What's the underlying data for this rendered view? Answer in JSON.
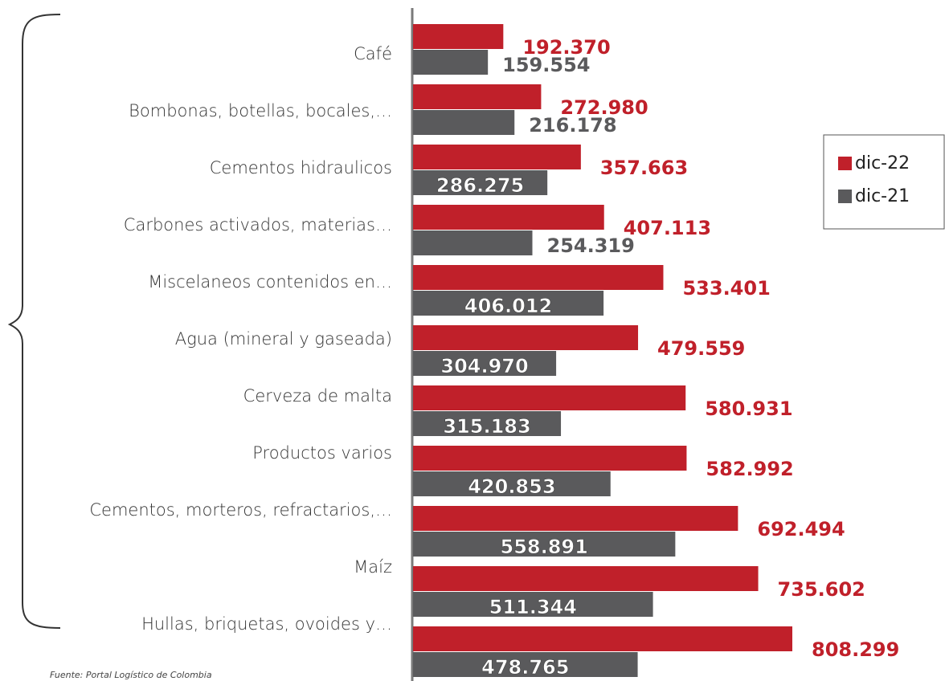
{
  "chart_data": {
    "type": "bar",
    "orientation": "horizontal",
    "categories": [
      "Café",
      "Bombonas, botellas, bocales,…",
      "Cementos hidraulicos",
      "Carbones activados, materias…",
      "Miscelaneos contenidos en…",
      "Agua (mineral y gaseada)",
      "Cerveza de malta",
      "Productos varios",
      "Cementos, morteros, refractarios,…",
      "Maíz",
      "Hullas, briquetas, ovoides y…"
    ],
    "series": [
      {
        "name": "dic-22",
        "color": "#c0202a",
        "values": [
          192370,
          272980,
          357663,
          407113,
          533401,
          479559,
          580931,
          582992,
          692494,
          735602,
          808299
        ],
        "value_labels": [
          "192.370",
          "272.980",
          "357.663",
          "407.113",
          "533.401",
          "479.559",
          "580.931",
          "582.992",
          "692.494",
          "735.602",
          "808.299"
        ]
      },
      {
        "name": "dic-21",
        "color": "#5a5a5c",
        "values": [
          159554,
          216178,
          286275,
          254319,
          406012,
          304970,
          315183,
          420853,
          558891,
          511344,
          478765
        ],
        "value_labels": [
          "159.554",
          "216.178",
          "286.275",
          "254.319",
          "406.012",
          "304.970",
          "315.183",
          "420.853",
          "558.891",
          "511.344",
          "478.765"
        ]
      }
    ],
    "legend": "right",
    "source": "Fuente: Portal Logístico de Colombia"
  }
}
